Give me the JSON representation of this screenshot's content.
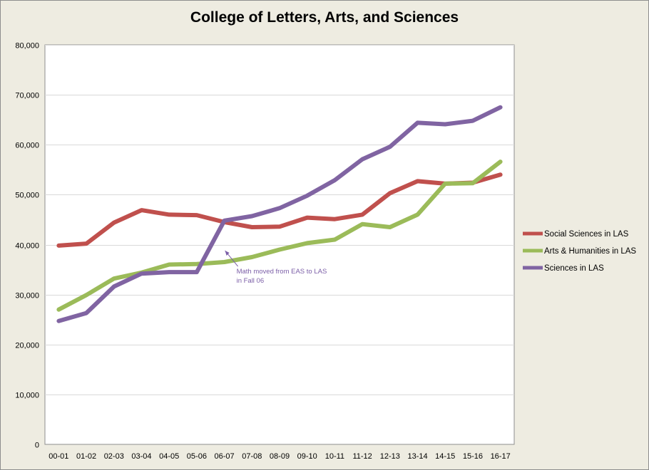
{
  "chart_data": {
    "type": "line",
    "title": "College of Letters, Arts, and Sciences",
    "xlabel": "",
    "ylabel": "",
    "categories": [
      "00-01",
      "01-02",
      "02-03",
      "03-04",
      "04-05",
      "05-06",
      "06-07",
      "07-08",
      "08-09",
      "09-10",
      "10-11",
      "11-12",
      "12-13",
      "13-14",
      "14-15",
      "15-16",
      "16-17"
    ],
    "ylim": [
      0,
      80000
    ],
    "yticks": [
      0,
      10000,
      20000,
      30000,
      40000,
      50000,
      60000,
      70000,
      80000
    ],
    "ytick_labels": [
      "0",
      "10,000",
      "20,000",
      "30,000",
      "40,000",
      "50,000",
      "60,000",
      "70,000",
      "80,000"
    ],
    "grid": true,
    "legend_position": "right",
    "series": [
      {
        "name": "Social Sciences in LAS",
        "color": "#c0504d",
        "values": [
          39800,
          40200,
          44400,
          46900,
          46000,
          45900,
          44500,
          43500,
          43600,
          45400,
          45100,
          46000,
          50300,
          52700,
          52200,
          52400,
          54000
        ]
      },
      {
        "name": "Arts & Humanities in LAS",
        "color": "#9bbb59",
        "values": [
          27000,
          29900,
          33200,
          34400,
          36000,
          36100,
          36500,
          37500,
          39000,
          40300,
          41000,
          44100,
          43500,
          46000,
          52200,
          52300,
          56600
        ]
      },
      {
        "name": "Sciences in LAS",
        "color": "#8064a2",
        "values": [
          24700,
          26300,
          31600,
          34200,
          34500,
          34500,
          44800,
          45700,
          47300,
          49800,
          52900,
          57100,
          59600,
          64400,
          64100,
          64800,
          67500
        ]
      }
    ],
    "annotations": [
      {
        "text_line1": "Math moved from EAS to LAS",
        "text_line2": "in Fall 06",
        "points_to_category": "06-07",
        "points_to_value": 39500
      }
    ]
  }
}
